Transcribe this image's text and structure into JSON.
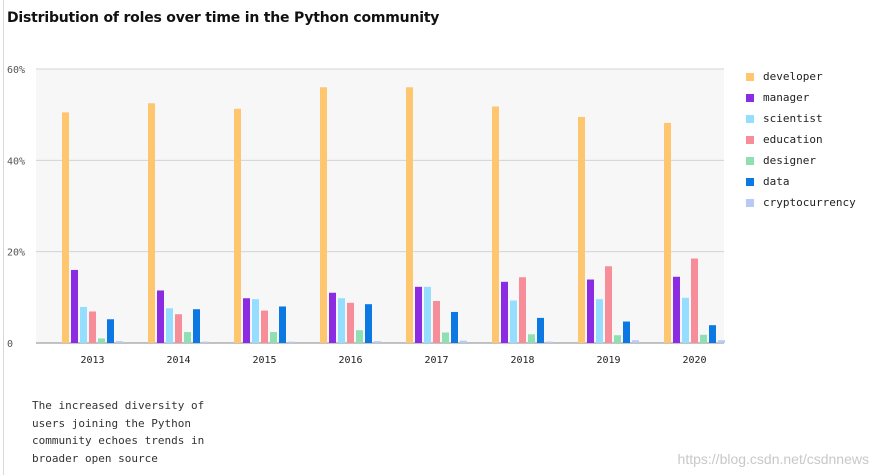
{
  "title": "Distribution of roles over time in the Python community",
  "caption": "The increased diversity of users joining the Python community echoes trends in broader open source",
  "watermark": "https://blog.csdn.net/csdnnews",
  "chart_data": {
    "type": "bar",
    "title": "Distribution of roles over time in the Python community",
    "xlabel": "",
    "ylabel": "",
    "ylim": [
      0,
      60
    ],
    "y_ticks": [
      {
        "value": 0,
        "label": "0"
      },
      {
        "value": 20,
        "label": "20%"
      },
      {
        "value": 40,
        "label": "40%"
      },
      {
        "value": 60,
        "label": "60%"
      }
    ],
    "grid": true,
    "legend_position": "right",
    "categories": [
      "2013",
      "2014",
      "2015",
      "2016",
      "2017",
      "2018",
      "2019",
      "2020"
    ],
    "series": [
      {
        "name": "developer",
        "color": "#FFC670",
        "values": [
          50.5,
          52.5,
          51.3,
          56.0,
          56.0,
          51.8,
          49.5,
          48.2
        ]
      },
      {
        "name": "manager",
        "color": "#8B2BE2",
        "values": [
          16.0,
          11.5,
          9.8,
          11.0,
          12.3,
          13.4,
          13.9,
          14.5
        ]
      },
      {
        "name": "scientist",
        "color": "#96DEFF",
        "values": [
          7.9,
          7.6,
          9.6,
          9.8,
          12.3,
          9.3,
          9.6,
          9.9
        ]
      },
      {
        "name": "education",
        "color": "#F78D98",
        "values": [
          6.9,
          6.3,
          7.1,
          8.8,
          9.2,
          14.4,
          16.8,
          18.5
        ]
      },
      {
        "name": "designer",
        "color": "#8FDFB2",
        "values": [
          1.0,
          2.4,
          2.4,
          2.8,
          2.3,
          1.9,
          1.7,
          1.8
        ]
      },
      {
        "name": "data",
        "color": "#0C79E3",
        "values": [
          5.2,
          7.4,
          8.0,
          8.5,
          6.8,
          5.5,
          4.7,
          3.9
        ]
      },
      {
        "name": "cryptocurrency",
        "color": "#B9C9F5",
        "values": [
          0.4,
          0.3,
          0.3,
          0.4,
          0.5,
          0.3,
          0.6,
          0.6
        ]
      }
    ]
  }
}
